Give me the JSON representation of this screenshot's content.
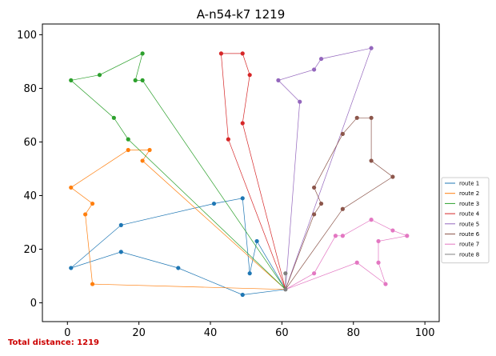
{
  "chart_data": {
    "type": "line",
    "title": "A-n54-k7 1219",
    "xlabel": "",
    "ylabel": "",
    "xlim": [
      -7,
      104
    ],
    "ylim": [
      -7,
      104
    ],
    "xticks": [
      0,
      20,
      40,
      60,
      80,
      100
    ],
    "yticks": [
      0,
      20,
      40,
      60,
      80,
      100
    ],
    "grid": false,
    "legend_position": "right",
    "depot": {
      "x": 61,
      "y": 5
    },
    "series": [
      {
        "name": "route 1",
        "color": "#1f77b4",
        "points": [
          [
            61,
            5
          ],
          [
            49,
            3
          ],
          [
            31,
            13
          ],
          [
            15,
            19
          ],
          [
            1,
            13
          ],
          [
            15,
            29
          ],
          [
            41,
            37
          ],
          [
            49,
            39
          ],
          [
            51,
            11
          ],
          [
            53,
            23
          ],
          [
            61,
            5
          ]
        ]
      },
      {
        "name": "route 2",
        "color": "#ff7f0e",
        "points": [
          [
            61,
            5
          ],
          [
            7,
            7
          ],
          [
            5,
            33
          ],
          [
            7,
            37
          ],
          [
            1,
            43
          ],
          [
            17,
            57
          ],
          [
            23,
            57
          ],
          [
            21,
            53
          ],
          [
            61,
            5
          ]
        ]
      },
      {
        "name": "route 3",
        "color": "#2ca02c",
        "points": [
          [
            61,
            5
          ],
          [
            21,
            83
          ],
          [
            19,
            83
          ],
          [
            21,
            93
          ],
          [
            9,
            85
          ],
          [
            1,
            83
          ],
          [
            13,
            69
          ],
          [
            17,
            61
          ],
          [
            61,
            5
          ]
        ]
      },
      {
        "name": "route 4",
        "color": "#d62728",
        "points": [
          [
            61,
            5
          ],
          [
            49,
            67
          ],
          [
            51,
            85
          ],
          [
            49,
            93
          ],
          [
            43,
            93
          ],
          [
            45,
            61
          ],
          [
            61,
            5
          ]
        ]
      },
      {
        "name": "route 5",
        "color": "#9467bd",
        "points": [
          [
            61,
            5
          ],
          [
            65,
            75
          ],
          [
            59,
            83
          ],
          [
            69,
            87
          ],
          [
            71,
            91
          ],
          [
            85,
            95
          ],
          [
            61,
            5
          ]
        ]
      },
      {
        "name": "route 6",
        "color": "#8c564b",
        "points": [
          [
            61,
            5
          ],
          [
            69,
            33
          ],
          [
            71,
            37
          ],
          [
            69,
            43
          ],
          [
            77,
            63
          ],
          [
            81,
            69
          ],
          [
            85,
            69
          ],
          [
            85,
            53
          ],
          [
            91,
            47
          ],
          [
            77,
            35
          ],
          [
            61,
            5
          ]
        ]
      },
      {
        "name": "route 7",
        "color": "#e377c2",
        "points": [
          [
            61,
            5
          ],
          [
            69,
            11
          ],
          [
            75,
            25
          ],
          [
            77,
            25
          ],
          [
            85,
            31
          ],
          [
            91,
            27
          ],
          [
            95,
            25
          ],
          [
            87,
            23
          ],
          [
            87,
            15
          ],
          [
            89,
            7
          ],
          [
            81,
            15
          ],
          [
            61,
            5
          ]
        ]
      },
      {
        "name": "route 8",
        "color": "#7f7f7f",
        "points": [
          [
            61,
            5
          ],
          [
            61,
            11
          ],
          [
            61,
            5
          ]
        ]
      }
    ]
  },
  "footer": {
    "total_distance": "Total distance: 1219"
  }
}
